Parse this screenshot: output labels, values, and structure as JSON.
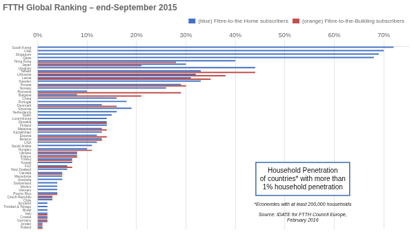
{
  "chart_data": {
    "type": "bar",
    "orientation": "horizontal",
    "title": "FTTH Global Ranking – end-September 2015",
    "categories": [
      "South Korea",
      "UAE",
      "Singapore",
      "Qatar",
      "Hong Kong",
      "Japan",
      "Uruguay",
      "Taiwan",
      "Lithuania",
      "Latvia",
      "Sweden",
      "Russia",
      "Norway",
      "Romania",
      "Bulgaria",
      "China",
      "Portugal",
      "Denmark",
      "Slovenia",
      "Netherlands",
      "Spain",
      "Luxembourg",
      "Slovakia",
      "Finland",
      "Malaysia",
      "Kazakhstan",
      "Estonia",
      "Belarus",
      "USA",
      "Saudi Arabia",
      "Hungary",
      "Ukraine",
      "France",
      "Turkey",
      "Kuwait",
      "FUZ",
      "New Zealand",
      "Canada",
      "Macedonia",
      "Australia",
      "Switzerland",
      "Mexico",
      "Vietnam",
      "Puerto Rico",
      "Czech Republic",
      "Chile",
      "Ecuador",
      "Trinidad & Tobago",
      "Brasil",
      "Italy",
      "Croatia",
      "Germany",
      "Jordan",
      "Poland"
    ],
    "series": [
      {
        "name": "(blue) Fibre-to-the Home subscribers",
        "color": "#4472c4",
        "values": [
          72,
          70,
          69,
          68,
          40,
          30,
          44,
          33,
          32,
          31,
          33,
          29,
          26,
          10,
          8,
          16,
          18,
          13,
          19,
          16,
          15,
          14,
          14,
          14,
          13,
          13,
          12,
          13,
          12,
          11,
          10,
          8,
          8,
          7,
          7,
          6,
          6,
          5,
          5,
          5,
          4,
          4,
          4,
          4,
          3,
          3,
          2,
          2,
          2,
          2,
          2,
          2,
          1,
          1
        ]
      },
      {
        "name": "(orange) Fibre-to-the-Building subscribers",
        "color": "#c0504d",
        "values": [
          0,
          0,
          0,
          0,
          28,
          21,
          0,
          44,
          38,
          35,
          0,
          30,
          0,
          29,
          21,
          0,
          0,
          16,
          0,
          0,
          0,
          0,
          14,
          0,
          14,
          0,
          14,
          13,
          0,
          0,
          11,
          8,
          8,
          7,
          0,
          7,
          0,
          5,
          0,
          0,
          0,
          0,
          0,
          4,
          3,
          0,
          0,
          0,
          0,
          2,
          2,
          2,
          1,
          1
        ]
      }
    ],
    "xlim": [
      0,
      75
    ],
    "xticks": [
      {
        "value": 0,
        "label": "0%"
      },
      {
        "value": 10,
        "label": "10%"
      },
      {
        "value": 20,
        "label": "20%"
      },
      {
        "value": 30,
        "label": "30%"
      },
      {
        "value": 40,
        "label": "40%"
      },
      {
        "value": 50,
        "label": "50%"
      },
      {
        "value": 60,
        "label": "60%"
      },
      {
        "value": 70,
        "label": "70%"
      }
    ],
    "grid": true,
    "legend": "top",
    "annotations": [
      "Household Penetration",
      "of countries* with more than\n1% household penetration",
      "*Economies with at least 200,000 households",
      "Source: IDATE for FTTH Council Europe,\nFebruary 2016"
    ]
  }
}
